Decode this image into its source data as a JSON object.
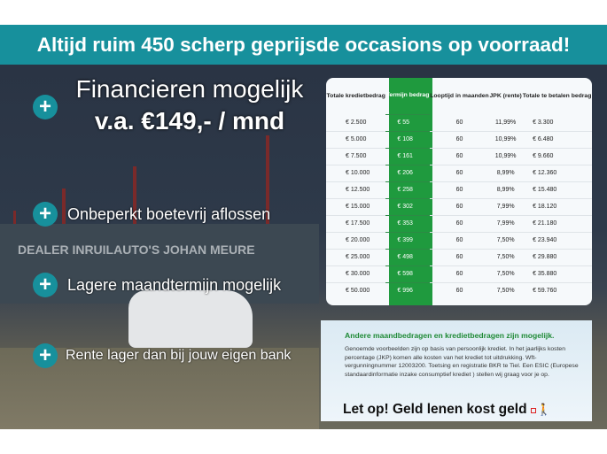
{
  "banner": {
    "title": "Altijd ruim 450 scherp geprijsde occasions op voorraad!"
  },
  "photo": {
    "sign_text": "DEALER INRUILAUTO'S JOHAN MEURE"
  },
  "benefits": {
    "financing": {
      "line1": "Financieren mogelijk",
      "line2": "v.a. €149,- / mnd"
    },
    "items": [
      {
        "label": "Onbeperkt boetevrij aflossen"
      },
      {
        "label": "Lagere maandtermijn mogelijk"
      },
      {
        "label": "Rente lager dan bij jouw eigen bank"
      }
    ],
    "icon": "plus-circle-icon",
    "accent": "#17909c"
  },
  "table": {
    "headers": [
      "Totale kredietbedrag",
      "Termijn bedrag",
      "Looptijd in maanden",
      "JPK (rente)",
      "Totale te betalen bedrag"
    ],
    "highlight_color": "#1f9a3e",
    "rows": [
      [
        "€ 2.500",
        "€ 55",
        "60",
        "11,99%",
        "€ 3.300"
      ],
      [
        "€ 5.000",
        "€ 108",
        "60",
        "10,99%",
        "€ 6.480"
      ],
      [
        "€ 7.500",
        "€ 161",
        "60",
        "10,99%",
        "€ 9.660"
      ],
      [
        "€ 10.000",
        "€ 206",
        "60",
        "8,99%",
        "€ 12.360"
      ],
      [
        "€ 12.500",
        "€ 258",
        "60",
        "8,99%",
        "€ 15.480"
      ],
      [
        "€ 15.000",
        "€ 302",
        "60",
        "7,99%",
        "€ 18.120"
      ],
      [
        "€ 17.500",
        "€ 353",
        "60",
        "7,99%",
        "€ 21.180"
      ],
      [
        "€ 20.000",
        "€ 399",
        "60",
        "7,50%",
        "€ 23.940"
      ],
      [
        "€ 25.000",
        "€ 498",
        "60",
        "7,50%",
        "€ 29.880"
      ],
      [
        "€ 30.000",
        "€ 598",
        "60",
        "7,50%",
        "€ 35.880"
      ],
      [
        "€ 50.000",
        "€ 996",
        "60",
        "7,50%",
        "€ 59.760"
      ]
    ]
  },
  "info": {
    "title": "Andere maandbedragen en kredietbedragen zijn mogelijk.",
    "body": "Genoemde voorbeelden zijn op basis van persoonlijk krediet. In het jaarlijks kosten percentage (JKP) komen alle kosten van het krediet tot uitdrukking. Wft-vergunningnummer 12003200. Toetsing en registratie BKR te Tiel. Een ESIC (Europese standaardinformatie inzake consumptief krediet ) stellen wij graag voor je op.",
    "warning": "Let op! Geld lenen kost geld",
    "warning_icon": "walking-man-ball-chain-icon"
  }
}
